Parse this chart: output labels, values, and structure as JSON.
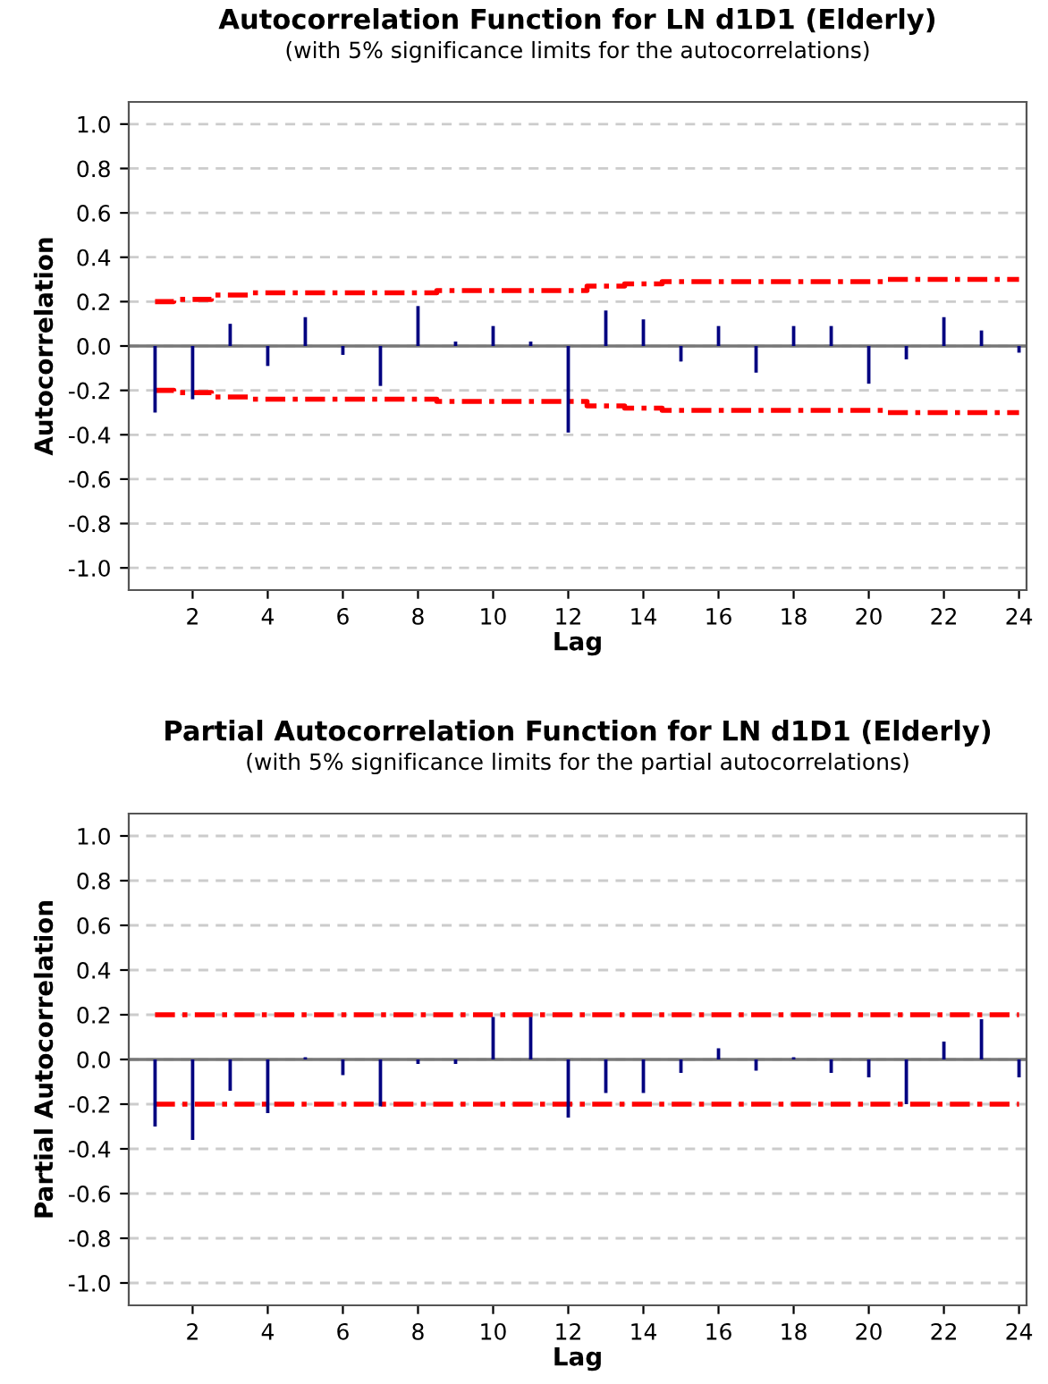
{
  "chart_data": [
    {
      "type": "bar",
      "title": "Autocorrelation Function for LN d1D1 (Elderly)",
      "subtitle": "(with 5% significance limits for the autocorrelations)",
      "xlabel": "Lag",
      "ylabel": "Autocorrelation",
      "x": [
        1,
        2,
        3,
        4,
        5,
        6,
        7,
        8,
        9,
        10,
        11,
        12,
        13,
        14,
        15,
        16,
        17,
        18,
        19,
        20,
        21,
        22,
        23,
        24
      ],
      "series": [
        {
          "color": "#000080",
          "values": [
            -0.3,
            -0.24,
            0.1,
            -0.09,
            0.13,
            -0.04,
            -0.18,
            0.18,
            0.02,
            0.09,
            0.02,
            -0.39,
            0.16,
            0.12,
            -0.07,
            0.09,
            -0.12,
            0.09,
            0.09,
            -0.17,
            -0.06,
            0.13,
            0.07,
            -0.03
          ]
        },
        {
          "type": "line",
          "color": "#ff0000",
          "line_style": "dashed",
          "values": [
            0.2,
            0.21,
            0.23,
            0.24,
            0.24,
            0.24,
            0.24,
            0.24,
            0.25,
            0.25,
            0.25,
            0.25,
            0.27,
            0.28,
            0.29,
            0.29,
            0.29,
            0.29,
            0.29,
            0.29,
            0.3,
            0.3,
            0.3,
            0.3
          ]
        },
        {
          "type": "line",
          "color": "#ff0000",
          "line_style": "dashed",
          "values": [
            -0.2,
            -0.21,
            -0.23,
            -0.24,
            -0.24,
            -0.24,
            -0.24,
            -0.24,
            -0.25,
            -0.25,
            -0.25,
            -0.25,
            -0.27,
            -0.28,
            -0.29,
            -0.29,
            -0.29,
            -0.29,
            -0.29,
            -0.29,
            -0.3,
            -0.3,
            -0.3,
            -0.3
          ]
        }
      ],
      "xlim": [
        0.3,
        24.2
      ],
      "xticks": [
        2,
        4,
        6,
        8,
        10,
        12,
        14,
        16,
        18,
        20,
        22,
        24
      ],
      "ylim": [
        -1.1,
        1.1
      ],
      "yticks": [
        {
          "value": -1.0,
          "label": "-1.0"
        },
        -0.8,
        -0.6,
        -0.4,
        -0.2,
        {
          "value": 0.0,
          "label": "0.0"
        },
        0.2,
        0.4,
        0.6,
        0.8,
        {
          "value": 1.0,
          "label": "1.0"
        }
      ],
      "grid": "y"
    },
    {
      "type": "bar",
      "title": "Partial Autocorrelation Function for LN d1D1 (Elderly)",
      "subtitle": "(with 5% significance limits for the partial autocorrelations)",
      "xlabel": "Lag",
      "ylabel": "Partial Autocorrelation",
      "x": [
        1,
        2,
        3,
        4,
        5,
        6,
        7,
        8,
        9,
        10,
        11,
        12,
        13,
        14,
        15,
        16,
        17,
        18,
        19,
        20,
        21,
        22,
        23,
        24
      ],
      "series": [
        {
          "color": "#000080",
          "values": [
            -0.3,
            -0.36,
            -0.14,
            -0.24,
            0.01,
            -0.07,
            -0.21,
            -0.02,
            -0.02,
            0.19,
            0.19,
            -0.26,
            -0.15,
            -0.15,
            -0.06,
            0.05,
            -0.05,
            0.01,
            -0.06,
            -0.08,
            -0.2,
            0.08,
            0.18,
            -0.08
          ]
        },
        {
          "type": "line",
          "color": "#ff0000",
          "line_style": "dashed",
          "values": [
            0.2,
            0.2,
            0.2,
            0.2,
            0.2,
            0.2,
            0.2,
            0.2,
            0.2,
            0.2,
            0.2,
            0.2,
            0.2,
            0.2,
            0.2,
            0.2,
            0.2,
            0.2,
            0.2,
            0.2,
            0.2,
            0.2,
            0.2,
            0.2
          ]
        },
        {
          "type": "line",
          "color": "#ff0000",
          "line_style": "dashed",
          "values": [
            -0.2,
            -0.2,
            -0.2,
            -0.2,
            -0.2,
            -0.2,
            -0.2,
            -0.2,
            -0.2,
            -0.2,
            -0.2,
            -0.2,
            -0.2,
            -0.2,
            -0.2,
            -0.2,
            -0.2,
            -0.2,
            -0.2,
            -0.2,
            -0.2,
            -0.2,
            -0.2,
            -0.2
          ]
        }
      ],
      "xlim": [
        0.3,
        24.2
      ],
      "xticks": [
        2,
        4,
        6,
        8,
        10,
        12,
        14,
        16,
        18,
        20,
        22,
        24
      ],
      "ylim": [
        -1.1,
        1.1
      ],
      "yticks": [
        {
          "value": -1.0,
          "label": "-1.0"
        },
        -0.8,
        -0.6,
        -0.4,
        -0.2,
        {
          "value": 0.0,
          "label": "0.0"
        },
        0.2,
        0.4,
        0.6,
        0.8,
        {
          "value": 1.0,
          "label": "1.0"
        }
      ],
      "grid": "y"
    }
  ]
}
